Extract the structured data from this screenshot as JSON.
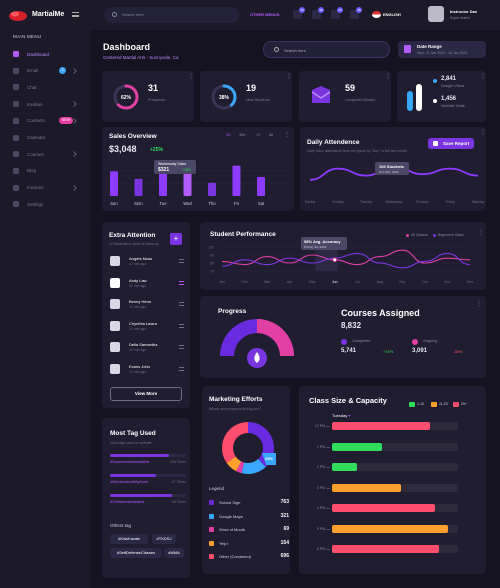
{
  "app": {
    "brand": "MartialMe"
  },
  "sidebar": {
    "menu_title": "MAIN MENU",
    "items": [
      {
        "label": "Dashboard",
        "icon": "dashboard-icon"
      },
      {
        "label": "Email",
        "icon": "mail-icon",
        "badge": "3"
      },
      {
        "label": "Chat",
        "icon": "chat-icon"
      },
      {
        "label": "Kanban",
        "icon": "kanban-icon"
      },
      {
        "label": "Contacts",
        "icon": "contacts-icon",
        "badge": "NEW"
      },
      {
        "label": "Calendar",
        "icon": "calendar-icon"
      },
      {
        "label": "Courses",
        "icon": "courses-icon"
      },
      {
        "label": "Blog",
        "icon": "blog-icon"
      },
      {
        "label": "Invoices",
        "icon": "invoice-icon"
      },
      {
        "label": "Settings",
        "icon": "settings-icon"
      }
    ]
  },
  "header": {
    "search_placeholder": "Search here",
    "other_menus": "OTHER MENUS",
    "notif_badges": [
      "76",
      "18",
      "23",
      "45"
    ],
    "language": "ENGLISH",
    "user_name": "Instructor Dav",
    "user_role": "Super Admin"
  },
  "page": {
    "title": "Dashboard",
    "subtitle": "Centered Martial Arts - Sunnyvale, Ca",
    "search_placeholder": "Search here",
    "date_range_label": "Date Range",
    "date_range_value": "Mon, 21 Jan 2024 - 28 Jan 2024"
  },
  "stats": [
    {
      "value": "31",
      "label": "Prospects",
      "percent": "62%",
      "fraction": 0.62,
      "color": "#e23fa3"
    },
    {
      "value": "19",
      "label": "New Students",
      "percent": "38%",
      "fraction": 0.38,
      "color": "#3aa7ff"
    },
    {
      "value": "59",
      "label": "Unopened Emails",
      "icon": "email-icon"
    }
  ],
  "students_card": {
    "rows": [
      {
        "value": "2,841",
        "label": "Google Views",
        "color": "#3aa7ff"
      },
      {
        "value": "1,456",
        "label": "Website Visits",
        "color": "#ffffff"
      }
    ]
  },
  "sales": {
    "title": "Sales Overview",
    "amount": "$3,048",
    "change": "+25%",
    "tabs": [
      "1D",
      "30d",
      "1Y",
      "All"
    ],
    "tooltip_title": "Wednesday Sales",
    "tooltip_value": "$321",
    "tooltip_change": "+15%"
  },
  "attendance": {
    "title": "Daily Attendence",
    "subtitle": "Daily class attendance from the graph by \"Day\" in the last month",
    "button": "Save Report",
    "tooltip_title": "106 Students",
    "tooltip_sub": "Oct 19th, 2022",
    "x_labels": [
      "Sunday",
      "Monday",
      "Tuesday",
      "Wednesday",
      "Thursday",
      "Friday",
      "Saturday"
    ]
  },
  "extra_attention": {
    "title": "Extra Attention",
    "subtitle": "10 Students in need of follow-up",
    "students": [
      {
        "name": "Angela Moss",
        "time": "12 min ago"
      },
      {
        "name": "Andy Law",
        "time": "12 min ago"
      },
      {
        "name": "Benny Henn",
        "time": "12 min ago"
      },
      {
        "name": "Chynthia Lawra",
        "time": "12 min ago"
      },
      {
        "name": "Della Samantha",
        "time": "12 min ago"
      },
      {
        "name": "Evans John",
        "time": "12 min ago"
      }
    ],
    "button": "View More"
  },
  "performance": {
    "title": "Student Performance",
    "legend": [
      "All Classes",
      "Beginners Class"
    ],
    "tooltip": "58% Avg. Accuracy",
    "tooltip_sub": "Pricing Jun 2022",
    "y_ticks": [
      "100",
      "90",
      "80",
      "70"
    ],
    "x_labels": [
      "Jan",
      "Feb",
      "Mar",
      "Apr",
      "May",
      "Jun",
      "Jul",
      "Aug",
      "Sep",
      "Oct",
      "Nov",
      "Dec"
    ]
  },
  "progress": {
    "title": "Progress",
    "courses_title": "Courses Assigned",
    "courses_value": "8,832",
    "completed_label": "Completed",
    "completed_value": "5,741",
    "completed_change": "+15%",
    "ongoing_label": "Ongoing",
    "ongoing_value": "3,091",
    "ongoing_change": "-35%"
  },
  "tags": {
    "title": "Most Tag Used",
    "subtitle": "Most tags used on website",
    "bars": [
      {
        "tag": "#SummarizeMartialArts",
        "count": "245 Times",
        "fraction": 0.78
      },
      {
        "tag": "#WeeknotesofMyAmbr",
        "count": "67 Times",
        "fraction": 0.6
      },
      {
        "tag": "#ChildrenMartialArts",
        "count": "45 Times",
        "fraction": 0.82
      }
    ],
    "others_title": "Others tag",
    "others": [
      "#KidsKarate",
      "#TKDSJ",
      "#SelfDefenseClasses",
      "#MMA"
    ]
  },
  "marketing": {
    "title": "Marketing Efforts",
    "subtitle": "Where are prospects finding you?",
    "donut_label": "25%",
    "legend_title": "Legend",
    "items": [
      {
        "name": "School Sign",
        "value": "763",
        "color": "#6a2be0"
      },
      {
        "name": "Google Maps",
        "value": "321",
        "color": "#3aa7ff"
      },
      {
        "name": "Word of Mouth",
        "value": "69",
        "color": "#e23fa3"
      },
      {
        "name": "Yelp!",
        "value": "154",
        "color": "#ff9f2e"
      },
      {
        "name": "Other (Combined)",
        "value": "696",
        "color": "#ff4d6d"
      }
    ]
  },
  "capacity": {
    "title": "Class  Size & Capacity",
    "day": "Tuesday",
    "legend": [
      {
        "label": "1-10",
        "color": "#2fdc5c"
      },
      {
        "label": "11-20",
        "color": "#ff9f2e"
      },
      {
        "label": "20+",
        "color": "#ff4d6d"
      }
    ],
    "rows": [
      {
        "time": "12 PM",
        "fraction": 0.78,
        "color": "#ff4d6d"
      },
      {
        "time": "1 PM",
        "fraction": 0.4,
        "color": "#2fdc5c"
      },
      {
        "time": "2 PM",
        "fraction": 0.2,
        "color": "#2fdc5c"
      },
      {
        "time": "3 PM",
        "fraction": 0.55,
        "color": "#ff9f2e"
      },
      {
        "time": "4 PM",
        "fraction": 0.82,
        "color": "#ff4d6d"
      },
      {
        "time": "5 PM",
        "fraction": 0.92,
        "color": "#ff9f2e"
      },
      {
        "time": "6 PM",
        "fraction": 0.85,
        "color": "#ff4d6d"
      }
    ]
  },
  "chart_data": [
    {
      "type": "bar",
      "title": "Sales Overview",
      "categories": [
        "Sun",
        "Mon",
        "Tue",
        "Wed",
        "Thu",
        "Fri",
        "Sat"
      ],
      "values": [
        65,
        45,
        80,
        60,
        35,
        80,
        50
      ]
    },
    {
      "type": "line",
      "title": "Student Performance",
      "x": [
        "Jan",
        "Feb",
        "Mar",
        "Apr",
        "May",
        "Jun",
        "Jul",
        "Aug",
        "Sep",
        "Oct",
        "Nov",
        "Dec"
      ],
      "ylim": [
        70,
        100
      ],
      "series": [
        {
          "name": "All Classes",
          "values": [
            82,
            78,
            88,
            80,
            90,
            84,
            78,
            88,
            96,
            80,
            86,
            84
          ]
        },
        {
          "name": "Beginners Class",
          "values": [
            76,
            84,
            78,
            86,
            80,
            86,
            92,
            80,
            74,
            82,
            92,
            78
          ]
        }
      ]
    },
    {
      "type": "line",
      "title": "Daily Attendence",
      "x": [
        "Sunday",
        "Monday",
        "Tuesday",
        "Wednesday",
        "Thursday",
        "Friday",
        "Saturday"
      ],
      "series": [
        {
          "values": [
            40,
            80,
            55,
            90,
            60,
            80,
            55
          ]
        }
      ]
    }
  ]
}
